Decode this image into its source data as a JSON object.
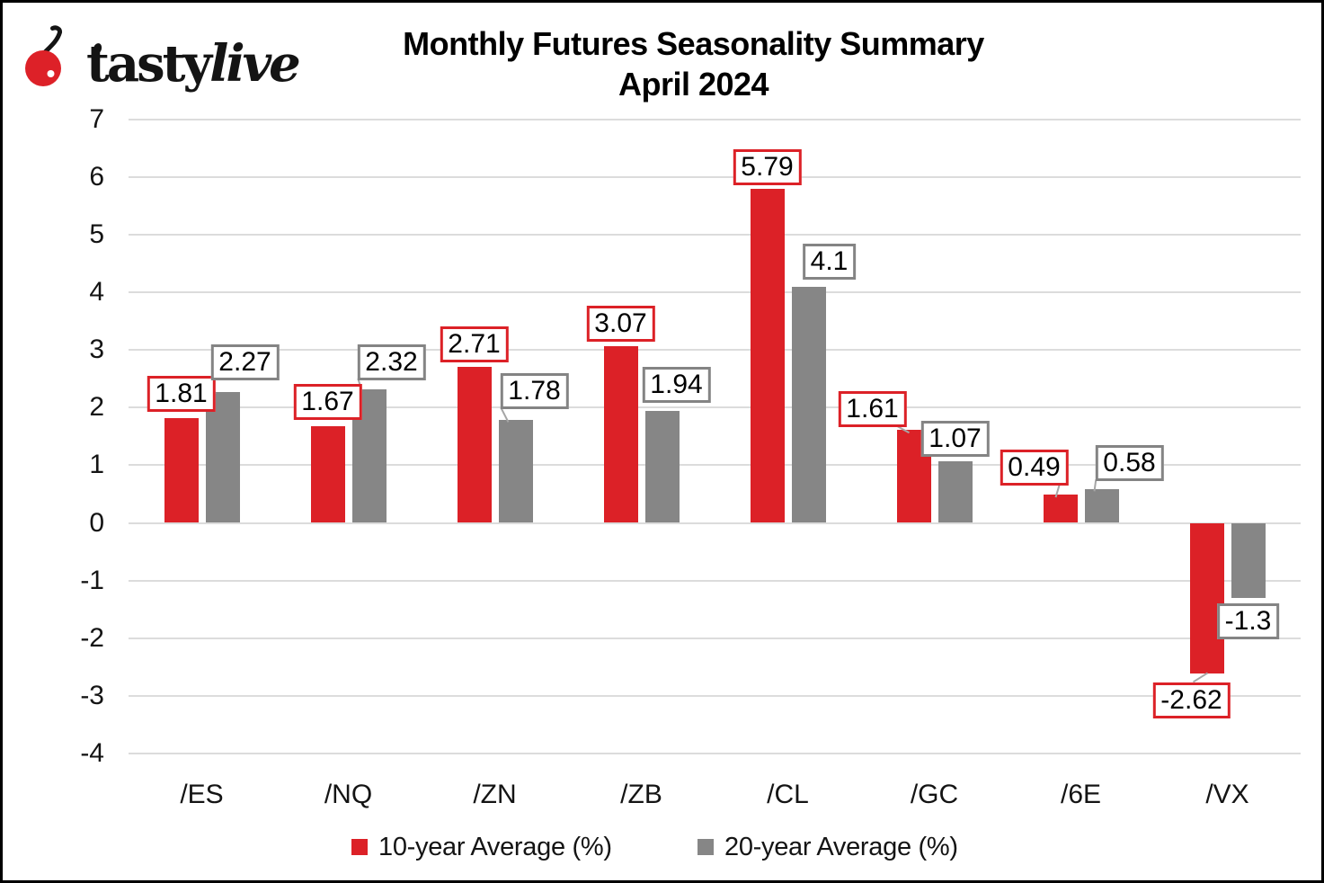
{
  "logo": {
    "text_regular": "tasty",
    "text_italic": "live",
    "cherry_color": "#DD2128"
  },
  "title": {
    "line1": "Monthly Futures Seasonality Summary",
    "line2": "April 2024"
  },
  "chart_data": {
    "type": "bar",
    "title": "Monthly Futures Seasonality Summary April 2024",
    "categories": [
      "/ES",
      "/NQ",
      "/ZN",
      "/ZB",
      "/CL",
      "/GC",
      "/6E",
      "/VX"
    ],
    "series": [
      {
        "name": "10-year Average (%)",
        "color": "#DC2127",
        "values": [
          1.81,
          1.67,
          2.71,
          3.07,
          5.79,
          1.61,
          0.49,
          -2.62
        ]
      },
      {
        "name": "20-year Average (%)",
        "color": "#868686",
        "values": [
          2.27,
          2.32,
          1.78,
          1.94,
          4.1,
          1.07,
          0.58,
          -1.3
        ]
      }
    ],
    "ylim": [
      -4,
      7
    ],
    "ytick_step": 1,
    "yticks": [
      7,
      6,
      5,
      4,
      3,
      2,
      1,
      0,
      -1,
      -2,
      -3,
      -4
    ],
    "grid": true,
    "legend_position": "bottom",
    "data_labels": true,
    "colors": {
      "gridline": "#DCDCDC",
      "leader_line": "#A6A6A6",
      "gray_label_border": "#848484",
      "text": "#141414"
    }
  }
}
